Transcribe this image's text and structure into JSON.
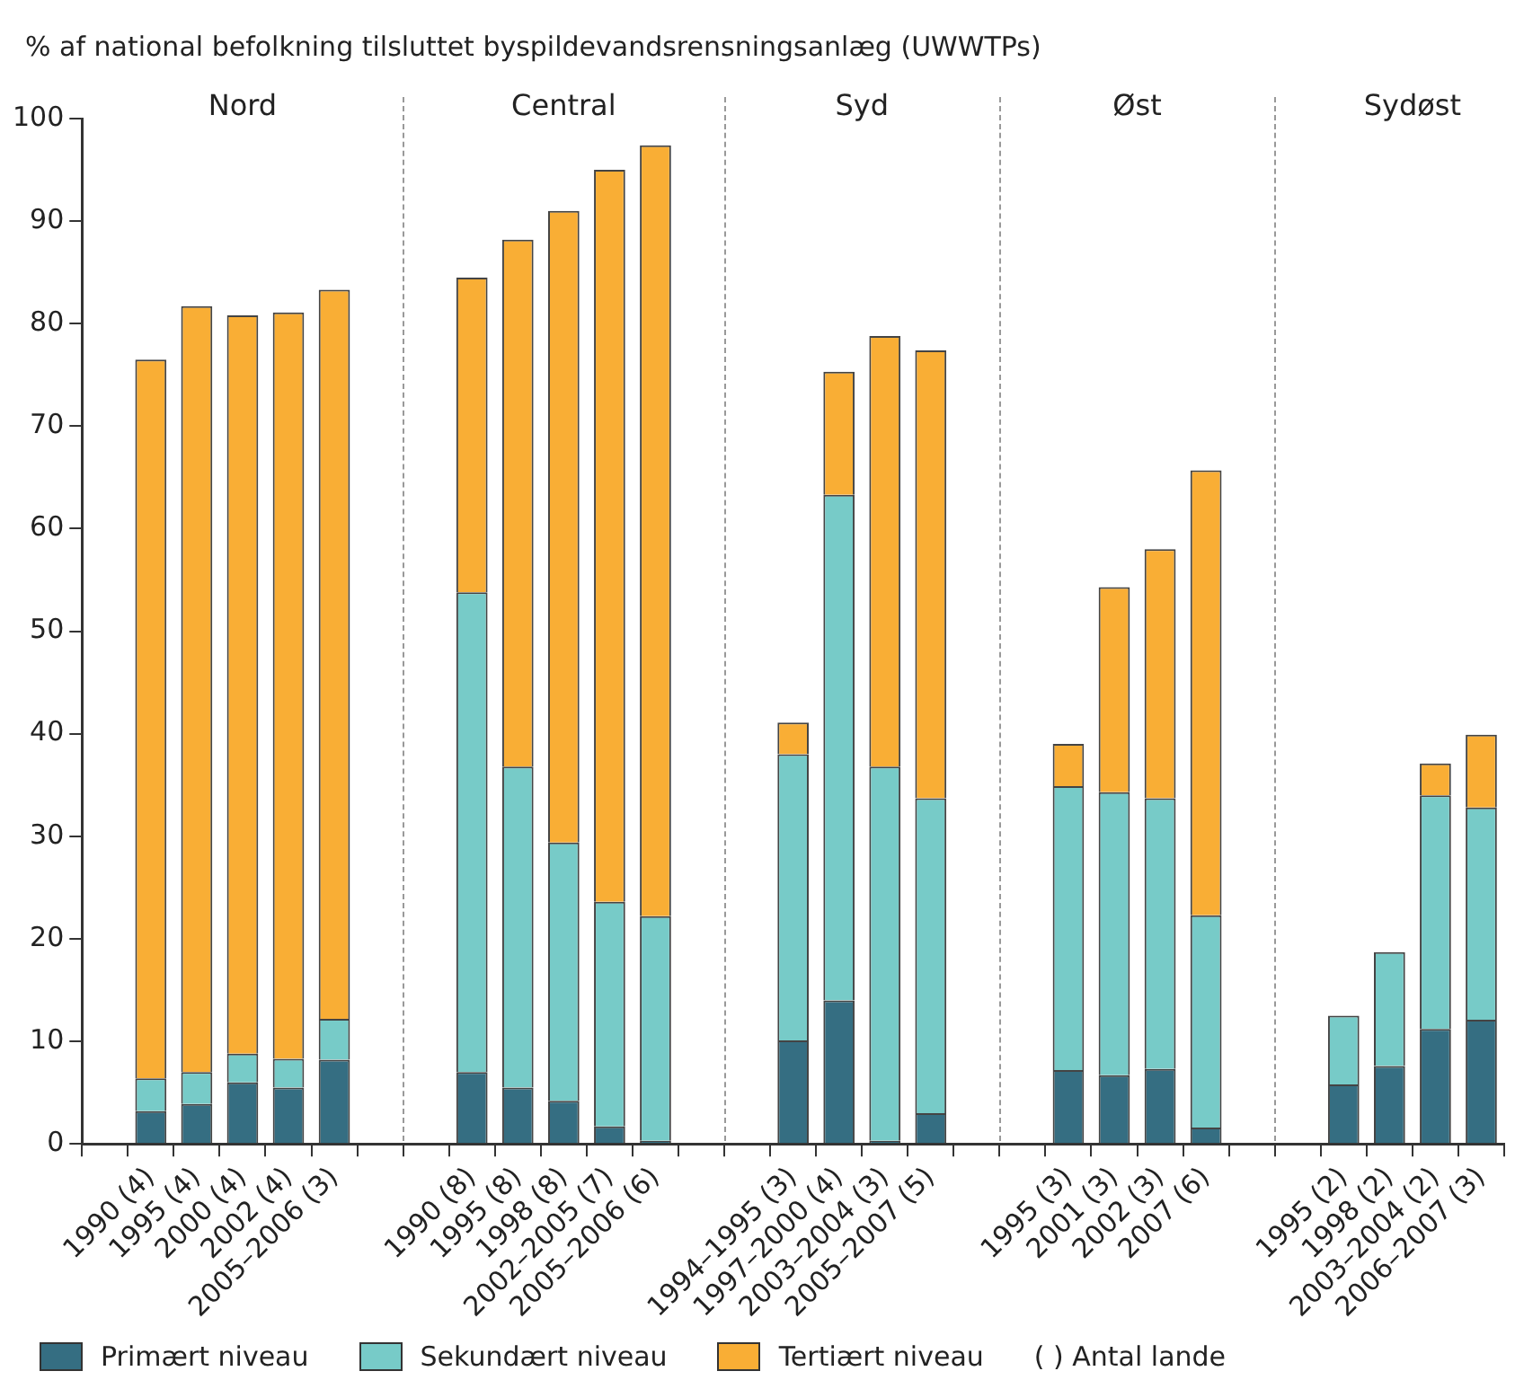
{
  "chart_data": {
    "type": "bar",
    "stacked": true,
    "ylabel": "% af national befolkning tilsluttet byspildevandsrensningsanlæg (UWWTPs)",
    "categories": [
      null,
      "1990 (4)",
      "1995 (4)",
      "2000 (4)",
      "2002 (4)",
      "2005–2006 (3)",
      null,
      null,
      "1990 (8)",
      "1995 (8)",
      "1998 (8)",
      "2002–2005 (7)",
      "2005–2006 (6)",
      null,
      null,
      "1994–1995 (3)",
      "1997–2000 (4)",
      "2003–2004 (3)",
      "2005–2007 (5)",
      null,
      null,
      "1995 (3)",
      "2001 (3)",
      "2002 (3)",
      "2007 (6)",
      null,
      null,
      "1995 (2)",
      "1998 (2)",
      "2003–2004 (2)",
      "2006–2007 (3)"
    ],
    "series": [
      {
        "name": "Primært niveau",
        "color": "#356e82",
        "values": [
          null,
          3.2,
          3.9,
          6.0,
          5.5,
          8.2,
          null,
          null,
          7.0,
          5.5,
          4.2,
          1.7,
          0.3,
          null,
          null,
          10.1,
          14.0,
          0.3,
          3.0,
          null,
          null,
          7.2,
          6.7,
          7.3,
          1.6,
          null,
          null,
          5.8,
          7.6,
          11.2,
          12.1
        ]
      },
      {
        "name": "Sekundært niveau",
        "color": "#77cbc8",
        "values": [
          null,
          3.2,
          3.1,
          2.8,
          2.8,
          4.0,
          null,
          null,
          46.8,
          31.3,
          25.2,
          21.9,
          21.9,
          null,
          null,
          27.9,
          49.3,
          36.5,
          30.7,
          null,
          null,
          27.7,
          27.6,
          26.4,
          20.7,
          null,
          null,
          6.7,
          11.1,
          22.8,
          20.7
        ]
      },
      {
        "name": "Tertiært niveau",
        "color": "#f9ae35",
        "values": [
          null,
          70.1,
          74.7,
          72.0,
          72.8,
          71.1,
          null,
          null,
          30.7,
          51.4,
          61.6,
          71.4,
          75.2,
          null,
          null,
          3.1,
          12.0,
          42.0,
          43.7,
          null,
          null,
          4.1,
          20.0,
          24.3,
          43.4,
          null,
          null,
          0,
          0,
          3.1,
          7.1
        ]
      }
    ],
    "ylim": [
      0,
      100
    ],
    "yticks": [
      0,
      10,
      20,
      30,
      40,
      50,
      60,
      70,
      80,
      90,
      100
    ],
    "grid": false,
    "legend": "bottom",
    "annotations": [
      "Nord",
      "Central",
      "Syd",
      "Øst",
      "Sydøst",
      "( ) Antal lande"
    ]
  }
}
